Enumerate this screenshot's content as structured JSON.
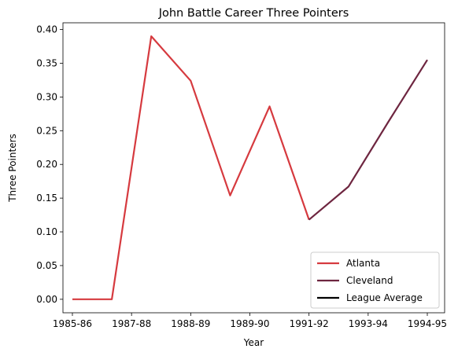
{
  "chart_data": {
    "type": "line",
    "title": "John Battle  Career Three Pointers",
    "xlabel": "Year",
    "ylabel": "Three Pointers",
    "x_tick_labels": [
      "1985-86",
      "1987-88",
      "1988-89",
      "1989-90",
      "1991-92",
      "1993-94",
      "1994-95"
    ],
    "y_ticks": [
      0.0,
      0.05,
      0.1,
      0.15,
      0.2,
      0.25,
      0.3,
      0.35,
      0.4
    ],
    "y_tick_labels": [
      "0.00",
      "0.05",
      "0.10",
      "0.15",
      "0.20",
      "0.25",
      "0.30",
      "0.35",
      "0.40"
    ],
    "ylim": [
      -0.02,
      0.41
    ],
    "grid": false,
    "legend_position": "lower-right",
    "seasons": [
      "1985-86",
      "1986-87",
      "1987-88",
      "1988-89",
      "1989-90",
      "1990-91",
      "1991-92",
      "1992-93",
      "1993-94",
      "1994-95"
    ],
    "series": [
      {
        "name": "Atlanta",
        "color": "#d63a3f",
        "x": [
          "1985-86",
          "1986-87",
          "1987-88",
          "1988-89",
          "1989-90",
          "1990-91",
          "1991-92"
        ],
        "values": [
          0.0,
          0.0,
          0.39,
          0.324,
          0.154,
          0.286,
          0.118
        ]
      },
      {
        "name": "Cleveland",
        "color": "#6e2640",
        "x": [
          "1991-92",
          "1992-93",
          "1993-94",
          "1994-95"
        ],
        "values": [
          0.118,
          0.167,
          0.262,
          0.355
        ]
      },
      {
        "name": "League Average",
        "color": "#000000",
        "x": [],
        "values": []
      }
    ]
  }
}
